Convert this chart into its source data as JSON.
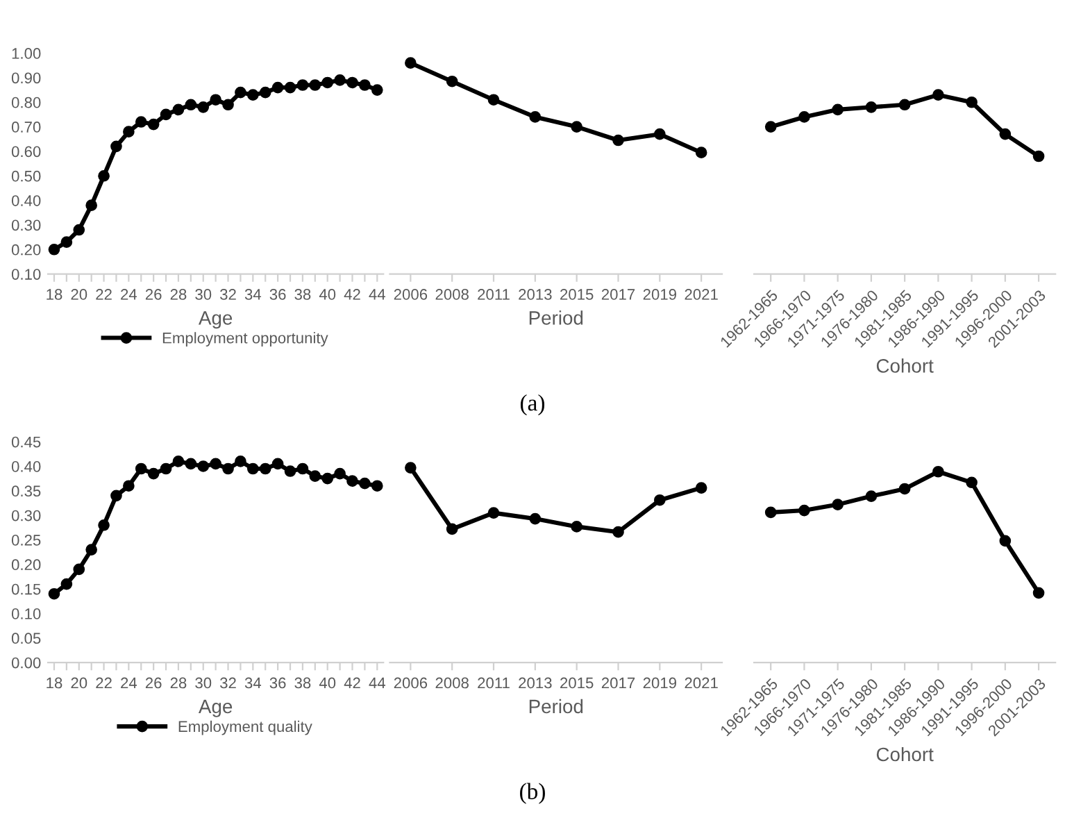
{
  "chart_data": [
    {
      "type": "line",
      "xlabel": "Age",
      "categories": [
        "18",
        null,
        "20",
        null,
        "22",
        null,
        "24",
        null,
        "26",
        null,
        "28",
        null,
        "30",
        null,
        "32",
        null,
        "34",
        null,
        "36",
        null,
        "38",
        null,
        "40",
        null,
        "42",
        null,
        "44"
      ],
      "series": [
        {
          "name": "Employment opportunity",
          "color": "#000000",
          "values": [
            0.2,
            0.23,
            0.28,
            0.38,
            0.5,
            0.62,
            0.68,
            0.72,
            0.71,
            0.75,
            0.77,
            0.79,
            0.78,
            0.81,
            0.79,
            0.84,
            0.83,
            0.84,
            0.86,
            0.86,
            0.87,
            0.87,
            0.88,
            0.89,
            0.88,
            0.87,
            0.85
          ]
        }
      ],
      "ylim": [
        0.1,
        1.0
      ],
      "yticks": [
        {
          "value": 0.1,
          "label": "0.10"
        },
        {
          "value": 0.2,
          "label": "0.20"
        },
        {
          "value": 0.3,
          "label": "0.30"
        },
        {
          "value": 0.4,
          "label": "0.40"
        },
        {
          "value": 0.5,
          "label": "0.50"
        },
        {
          "value": 0.6,
          "label": "0.60"
        },
        {
          "value": 0.7,
          "label": "0.70"
        },
        {
          "value": 0.8,
          "label": "0.80"
        },
        {
          "value": 0.9,
          "label": "0.90"
        },
        {
          "value": 1.0,
          "label": "1.00"
        }
      ],
      "marker": "circle",
      "legend": "bottom",
      "annotations": [
        "(a)"
      ]
    },
    {
      "type": "line",
      "xlabel": "Period",
      "categories": [
        "2006",
        "2008",
        "2011",
        "2013",
        "2015",
        "2017",
        "2019",
        "2021"
      ],
      "series": [
        {
          "color": "#000000",
          "values": [
            0.96,
            0.885,
            0.81,
            0.74,
            0.7,
            0.645,
            0.67,
            0.595
          ]
        }
      ],
      "ylim": [
        0.1,
        1.0
      ],
      "tick_labels": "x",
      "marker": "circle"
    },
    {
      "type": "line",
      "xlabel": "Cohort",
      "categories": [
        "1962-1965",
        "1966-1970",
        "1971-1975",
        "1976-1980",
        "1981-1985",
        "1986-1990",
        "1991-1995",
        "1996-2000",
        "2001-2003"
      ],
      "series": [
        {
          "color": "#000000",
          "values": [
            0.7,
            0.74,
            0.77,
            0.78,
            0.79,
            0.83,
            0.8,
            0.67,
            0.58
          ]
        }
      ],
      "ylim": [
        0.1,
        1.0
      ],
      "tick_labels": "x",
      "marker": "circle"
    },
    {
      "type": "line",
      "xlabel": "Age",
      "categories": [
        "18",
        null,
        "20",
        null,
        "22",
        null,
        "24",
        null,
        "26",
        null,
        "28",
        null,
        "30",
        null,
        "32",
        null,
        "34",
        null,
        "36",
        null,
        "38",
        null,
        "40",
        null,
        "42",
        null,
        "44"
      ],
      "series": [
        {
          "name": "Employment quality",
          "color": "#000000",
          "values": [
            0.14,
            0.16,
            0.19,
            0.23,
            0.28,
            0.34,
            0.36,
            0.395,
            0.385,
            0.395,
            0.41,
            0.405,
            0.4,
            0.405,
            0.395,
            0.41,
            0.395,
            0.395,
            0.405,
            0.39,
            0.395,
            0.38,
            0.375,
            0.385,
            0.37,
            0.365,
            0.36
          ]
        }
      ],
      "ylim": [
        0.0,
        0.45
      ],
      "yticks": [
        {
          "value": 0,
          "label": "0.00"
        },
        {
          "value": 0.05,
          "label": "0.05"
        },
        {
          "value": 0.1,
          "label": "0.10"
        },
        {
          "value": 0.15,
          "label": "0.15"
        },
        {
          "value": 0.2,
          "label": "0.20"
        },
        {
          "value": 0.25,
          "label": "0.25"
        },
        {
          "value": 0.3,
          "label": "0.30"
        },
        {
          "value": 0.35,
          "label": "0.35"
        },
        {
          "value": 0.4,
          "label": "0.40"
        },
        {
          "value": 0.45,
          "label": "0.45"
        }
      ],
      "marker": "circle",
      "legend": "bottom",
      "annotations": [
        "(b)"
      ]
    },
    {
      "type": "line",
      "xlabel": "Period",
      "categories": [
        "2006",
        "2008",
        "2011",
        "2013",
        "2015",
        "2017",
        "2019",
        "2021"
      ],
      "series": [
        {
          "color": "#000000",
          "values": [
            0.397,
            0.272,
            0.305,
            0.293,
            0.277,
            0.266,
            0.331,
            0.356
          ]
        }
      ],
      "ylim": [
        0.0,
        0.45
      ],
      "tick_labels": "x",
      "marker": "circle"
    },
    {
      "type": "line",
      "xlabel": "Cohort",
      "categories": [
        "1962-1965",
        "1966-1970",
        "1971-1975",
        "1976-1980",
        "1981-1985",
        "1986-1990",
        "1991-1995",
        "1996-2000",
        "2001-2003"
      ],
      "series": [
        {
          "color": "#000000",
          "values": [
            0.306,
            0.31,
            0.322,
            0.339,
            0.354,
            0.389,
            0.367,
            0.248,
            0.142
          ]
        }
      ],
      "ylim": [
        0.0,
        0.45
      ],
      "tick_labels": "x",
      "marker": "circle"
    }
  ]
}
